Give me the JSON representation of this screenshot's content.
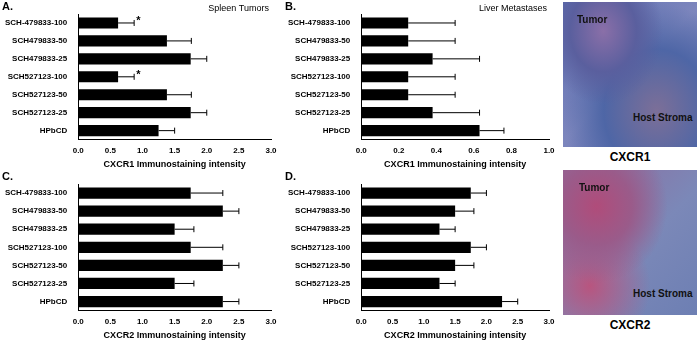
{
  "chart_data": [
    {
      "type": "bar",
      "orientation": "horizontal",
      "panel": "A.",
      "title": "Spleen Tumors",
      "categories": [
        "SCH-479833-100",
        "SCH479833-50",
        "SCH479833-25",
        "SCH527123-100",
        "SCH527123-50",
        "SCH527123-25",
        "HPbCD"
      ],
      "values": [
        0.62,
        1.38,
        1.75,
        0.62,
        1.38,
        1.75,
        1.25
      ],
      "errors": [
        0.25,
        0.38,
        0.25,
        0.25,
        0.38,
        0.25,
        0.25
      ],
      "annotations": [
        {
          "text": "*",
          "category": "SCH-479833-100"
        },
        {
          "text": "*",
          "category": "SCH527123-100"
        }
      ],
      "color": "#000000",
      "xlabel": "CXCR1 Immunostaining intensity",
      "xlim": [
        0,
        3
      ],
      "xticks": [
        {
          "value": 0,
          "label": "0.0"
        },
        {
          "value": 0.5,
          "label": "0.5"
        },
        {
          "value": 1,
          "label": "1.0"
        },
        {
          "value": 1.5,
          "label": "1.5"
        },
        {
          "value": 2,
          "label": "2.0"
        },
        {
          "value": 2.5,
          "label": "2.5"
        },
        {
          "value": 3,
          "label": "3.0"
        }
      ],
      "grid": false
    },
    {
      "type": "bar",
      "orientation": "horizontal",
      "panel": "B.",
      "title": "Liver Metastases",
      "categories": [
        "SCH-479833-100",
        "SCH479833-50",
        "SCH479833-25",
        "SCH527123-100",
        "SCH527123-50",
        "SCH527123-25",
        "HPbCD"
      ],
      "values": [
        0.25,
        0.25,
        0.38,
        0.25,
        0.25,
        0.38,
        0.63
      ],
      "errors": [
        0.25,
        0.25,
        0.25,
        0.25,
        0.25,
        0.25,
        0.13
      ],
      "color": "#000000",
      "xlabel": "CXCR1 Immunostaining intensity",
      "xlim": [
        0,
        1
      ],
      "xticks": [
        {
          "value": 0,
          "label": "0.0"
        },
        {
          "value": 0.2,
          "label": "0.2"
        },
        {
          "value": 0.4,
          "label": "0.4"
        },
        {
          "value": 0.6,
          "label": "0.6"
        },
        {
          "value": 0.8,
          "label": "0.8"
        },
        {
          "value": 1,
          "label": "1.0"
        }
      ],
      "grid": false
    },
    {
      "type": "bar",
      "orientation": "horizontal",
      "panel": "C.",
      "categories": [
        "SCH-479833-100",
        "SCH479833-50",
        "SCH479833-25",
        "SCH527123-100",
        "SCH527123-50",
        "SCH527123-25",
        "HPbCD"
      ],
      "values": [
        1.75,
        2.25,
        1.5,
        1.75,
        2.25,
        1.5,
        2.25
      ],
      "errors": [
        0.5,
        0.25,
        0.3,
        0.5,
        0.25,
        0.3,
        0.25
      ],
      "color": "#000000",
      "xlabel": "CXCR2 Immunostaining intensity",
      "xlim": [
        0,
        3
      ],
      "xticks": [
        {
          "value": 0,
          "label": "0.0"
        },
        {
          "value": 0.5,
          "label": "0.5"
        },
        {
          "value": 1,
          "label": "1.0"
        },
        {
          "value": 1.5,
          "label": "1.5"
        },
        {
          "value": 2,
          "label": "2.0"
        },
        {
          "value": 2.5,
          "label": "2.5"
        },
        {
          "value": 3,
          "label": "3.0"
        }
      ],
      "grid": false
    },
    {
      "type": "bar",
      "orientation": "horizontal",
      "panel": "D.",
      "categories": [
        "SCH-479833-100",
        "SCH479833-50",
        "SCH479833-25",
        "SCH527123-100",
        "SCH527123-50",
        "SCH527123-25",
        "HPbCD"
      ],
      "values": [
        1.75,
        1.5,
        1.25,
        1.75,
        1.5,
        1.25,
        2.25
      ],
      "errors": [
        0.25,
        0.3,
        0.25,
        0.25,
        0.3,
        0.25,
        0.25
      ],
      "color": "#000000",
      "xlabel": "CXCR2 Immunostaining intensity",
      "xlim": [
        0,
        3
      ],
      "xticks": [
        {
          "value": 0,
          "label": "0.0"
        },
        {
          "value": 0.5,
          "label": "0.5"
        },
        {
          "value": 1,
          "label": "1.0"
        },
        {
          "value": 1.5,
          "label": "1.5"
        },
        {
          "value": 2,
          "label": "2.0"
        },
        {
          "value": 2.5,
          "label": "2.5"
        },
        {
          "value": 3,
          "label": "3.0"
        }
      ],
      "grid": false
    }
  ],
  "images": [
    {
      "caption": "CXCR1",
      "labels": [
        "Tumor",
        "Host Stroma"
      ]
    },
    {
      "caption": "CXCR2",
      "labels": [
        "Tumor",
        "Host Stroma"
      ]
    }
  ]
}
